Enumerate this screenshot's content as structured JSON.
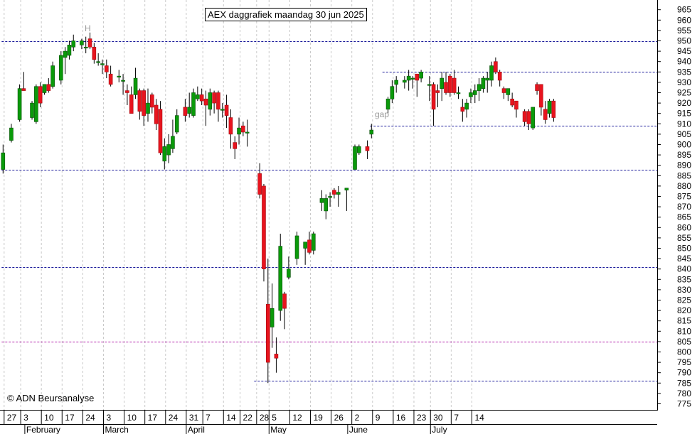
{
  "title": "AEX daggrafiek maandag 30 jun 2025",
  "copyright": "© ADN Beursanalyse",
  "colors": {
    "up": "#0a9a0a",
    "down": "#e8141e",
    "hline": "#1a1a9a",
    "support_magenta": "#b01aa8",
    "grid": "#c8c8c8"
  },
  "chart_data": {
    "type": "candlestick",
    "title": "AEX daggrafiek maandag 30 jun 2025",
    "ylim": [
      770,
      968
    ],
    "y_ticks": [
      775,
      780,
      785,
      790,
      795,
      800,
      805,
      810,
      815,
      820,
      825,
      830,
      835,
      840,
      845,
      850,
      855,
      860,
      865,
      870,
      875,
      880,
      885,
      890,
      895,
      900,
      905,
      910,
      915,
      920,
      925,
      930,
      935,
      940,
      945,
      950,
      955,
      960,
      965
    ],
    "x_ticks": [
      "27",
      "3",
      "10",
      "17",
      "24",
      "3",
      "10",
      "17",
      "24",
      "31",
      "7",
      "14",
      "22",
      "28",
      "5",
      "12",
      "19",
      "26",
      "2",
      "9",
      "16",
      "23",
      "30",
      "7",
      "14"
    ],
    "months": [
      "February",
      "March",
      "April",
      "May",
      "June",
      "July"
    ],
    "grid": true,
    "annotations": [
      {
        "text": "H"
      },
      {
        "text": "gap"
      }
    ],
    "horizontal_lines": [
      {
        "y": 950,
        "color": "blue",
        "from": 0
      },
      {
        "y": 935,
        "color": "blue",
        "from": 92
      },
      {
        "y": 909,
        "color": "blue",
        "from": 89
      },
      {
        "y": 888,
        "color": "blue",
        "from": 0
      },
      {
        "y": 841,
        "color": "blue",
        "from": 0
      },
      {
        "y": 805,
        "color": "magenta",
        "from": 0
      },
      {
        "y": 786,
        "color": "blue",
        "from": 61
      }
    ],
    "candles": [
      {
        "d": 0,
        "o": 888,
        "h": 900,
        "l": 886,
        "c": 896
      },
      {
        "d": 2,
        "o": 902,
        "h": 910,
        "l": 901,
        "c": 908
      },
      {
        "d": 4,
        "o": 912,
        "h": 929,
        "l": 911,
        "c": 927
      },
      {
        "d": 5,
        "o": 927,
        "h": 935,
        "l": 926,
        "c": 926
      },
      {
        "d": 7,
        "o": 913,
        "h": 921,
        "l": 912,
        "c": 920
      },
      {
        "d": 8,
        "o": 911,
        "h": 929,
        "l": 910,
        "c": 928
      },
      {
        "d": 9,
        "o": 928,
        "h": 930,
        "l": 918,
        "c": 920
      },
      {
        "d": 10,
        "o": 925,
        "h": 929,
        "l": 924,
        "c": 929
      },
      {
        "d": 11,
        "o": 929,
        "h": 932,
        "l": 925,
        "c": 926
      },
      {
        "d": 12,
        "o": 928,
        "h": 940,
        "l": 927,
        "c": 938
      },
      {
        "d": 14,
        "o": 931,
        "h": 945,
        "l": 929,
        "c": 943
      },
      {
        "d": 15,
        "o": 942,
        "h": 947,
        "l": 934,
        "c": 945
      },
      {
        "d": 16,
        "o": 943,
        "h": 950,
        "l": 941,
        "c": 948
      },
      {
        "d": 17,
        "o": 947,
        "h": 953,
        "l": 945,
        "c": 950
      },
      {
        "d": 19,
        "o": 948,
        "h": 951,
        "l": 946,
        "c": 950
      },
      {
        "d": 20,
        "o": 947,
        "h": 952,
        "l": 944,
        "c": 947
      },
      {
        "d": 21,
        "o": 951,
        "h": 954,
        "l": 946,
        "c": 947
      },
      {
        "d": 22,
        "o": 947,
        "h": 949,
        "l": 939,
        "c": 941
      },
      {
        "d": 23,
        "o": 940,
        "h": 944,
        "l": 938,
        "c": 940
      },
      {
        "d": 24,
        "o": 939,
        "h": 941,
        "l": 934,
        "c": 939
      },
      {
        "d": 25,
        "o": 938,
        "h": 941,
        "l": 932,
        "c": 935
      },
      {
        "d": 26,
        "o": 934,
        "h": 938,
        "l": 928,
        "c": 929
      },
      {
        "d": 28,
        "o": 933,
        "h": 936,
        "l": 930,
        "c": 933
      },
      {
        "d": 29,
        "o": 931,
        "h": 934,
        "l": 924,
        "c": 931
      },
      {
        "d": 30,
        "o": 926,
        "h": 929,
        "l": 919,
        "c": 925
      },
      {
        "d": 31,
        "o": 924,
        "h": 928,
        "l": 915,
        "c": 915
      },
      {
        "d": 32,
        "o": 924,
        "h": 937,
        "l": 922,
        "c": 932
      },
      {
        "d": 33,
        "o": 926,
        "h": 927,
        "l": 912,
        "c": 916
      },
      {
        "d": 34,
        "o": 926,
        "h": 927,
        "l": 909,
        "c": 914
      },
      {
        "d": 35,
        "o": 915,
        "h": 927,
        "l": 911,
        "c": 920
      },
      {
        "d": 36,
        "o": 924,
        "h": 925,
        "l": 915,
        "c": 918
      },
      {
        "d": 37,
        "o": 919,
        "h": 922,
        "l": 907,
        "c": 910
      },
      {
        "d": 38,
        "o": 917,
        "h": 921,
        "l": 895,
        "c": 896
      },
      {
        "d": 39,
        "o": 892,
        "h": 903,
        "l": 888,
        "c": 899
      },
      {
        "d": 40,
        "o": 895,
        "h": 905,
        "l": 891,
        "c": 900
      },
      {
        "d": 41,
        "o": 898,
        "h": 912,
        "l": 896,
        "c": 904
      },
      {
        "d": 42,
        "o": 906,
        "h": 917,
        "l": 905,
        "c": 914
      },
      {
        "d": 44,
        "o": 918,
        "h": 922,
        "l": 911,
        "c": 914
      },
      {
        "d": 45,
        "o": 915,
        "h": 925,
        "l": 913,
        "c": 918
      },
      {
        "d": 46,
        "o": 914,
        "h": 927,
        "l": 913,
        "c": 925
      },
      {
        "d": 47,
        "o": 922,
        "h": 928,
        "l": 921,
        "c": 924
      },
      {
        "d": 48,
        "o": 924,
        "h": 927,
        "l": 919,
        "c": 921
      },
      {
        "d": 49,
        "o": 922,
        "h": 926,
        "l": 909,
        "c": 919
      },
      {
        "d": 50,
        "o": 917,
        "h": 927,
        "l": 914,
        "c": 925
      },
      {
        "d": 51,
        "o": 925,
        "h": 926,
        "l": 915,
        "c": 920
      },
      {
        "d": 52,
        "o": 925,
        "h": 926,
        "l": 911,
        "c": 917
      },
      {
        "d": 53,
        "o": 917,
        "h": 920,
        "l": 913,
        "c": 917
      },
      {
        "d": 54,
        "o": 919,
        "h": 924,
        "l": 908,
        "c": 914
      },
      {
        "d": 55,
        "o": 913,
        "h": 917,
        "l": 898,
        "c": 905
      },
      {
        "d": 56,
        "o": 901,
        "h": 904,
        "l": 893,
        "c": 898
      },
      {
        "d": 57,
        "o": 905,
        "h": 913,
        "l": 900,
        "c": 908
      },
      {
        "d": 58,
        "o": 909,
        "h": 911,
        "l": 904,
        "c": 906
      },
      {
        "d": 59,
        "o": 906,
        "h": 912,
        "l": 899,
        "c": 906
      },
      {
        "d": 62,
        "o": 886,
        "h": 891,
        "l": 874,
        "c": 876
      },
      {
        "d": 63,
        "o": 880,
        "h": 881,
        "l": 834,
        "c": 840
      },
      {
        "d": 64,
        "o": 823,
        "h": 845,
        "l": 785,
        "c": 795
      },
      {
        "d": 65,
        "o": 812,
        "h": 833,
        "l": 802,
        "c": 821
      },
      {
        "d": 66,
        "o": 799,
        "h": 807,
        "l": 790,
        "c": 797
      },
      {
        "d": 67,
        "o": 820,
        "h": 857,
        "l": 815,
        "c": 851
      },
      {
        "d": 68,
        "o": 828,
        "h": 829,
        "l": 811,
        "c": 821
      },
      {
        "d": 69,
        "o": 836,
        "h": 846,
        "l": 835,
        "c": 840
      },
      {
        "d": 71,
        "o": 845,
        "h": 858,
        "l": 842,
        "c": 856
      },
      {
        "d": 73,
        "o": 850,
        "h": 853,
        "l": 842,
        "c": 853
      },
      {
        "d": 74,
        "o": 854,
        "h": 858,
        "l": 847,
        "c": 848
      },
      {
        "d": 75,
        "o": 849,
        "h": 858,
        "l": 847,
        "c": 857
      },
      {
        "d": 77,
        "o": 872,
        "h": 878,
        "l": 868,
        "c": 874
      },
      {
        "d": 78,
        "o": 868,
        "h": 876,
        "l": 864,
        "c": 874
      },
      {
        "d": 79,
        "o": 875,
        "h": 877,
        "l": 870,
        "c": 875
      },
      {
        "d": 80,
        "o": 878,
        "h": 879,
        "l": 874,
        "c": 876
      },
      {
        "d": 81,
        "o": 876,
        "h": 880,
        "l": 870,
        "c": 877
      },
      {
        "d": 83,
        "o": 878,
        "h": 879,
        "l": 868,
        "c": 879
      },
      {
        "d": 85,
        "o": 888,
        "h": 900,
        "l": 888,
        "c": 899
      },
      {
        "d": 86,
        "o": 896,
        "h": 900,
        "l": 895,
        "c": 899
      },
      {
        "d": 88,
        "o": 899,
        "h": 902,
        "l": 893,
        "c": 897
      },
      {
        "d": 89,
        "o": 905,
        "h": 910,
        "l": 903,
        "c": 907
      },
      {
        "d": 93,
        "o": 917,
        "h": 923,
        "l": 915,
        "c": 922
      },
      {
        "d": 94,
        "o": 922,
        "h": 931,
        "l": 920,
        "c": 928
      },
      {
        "d": 95,
        "o": 929,
        "h": 933,
        "l": 925,
        "c": 931
      },
      {
        "d": 97,
        "o": 930,
        "h": 933,
        "l": 927,
        "c": 931
      },
      {
        "d": 98,
        "o": 931,
        "h": 936,
        "l": 926,
        "c": 933
      },
      {
        "d": 99,
        "o": 932,
        "h": 933,
        "l": 927,
        "c": 932
      },
      {
        "d": 100,
        "o": 934,
        "h": 934,
        "l": 923,
        "c": 931
      },
      {
        "d": 101,
        "o": 932,
        "h": 936,
        "l": 930,
        "c": 935
      },
      {
        "d": 103,
        "o": 929,
        "h": 933,
        "l": 921,
        "c": 929
      },
      {
        "d": 104,
        "o": 929,
        "h": 930,
        "l": 909,
        "c": 917
      },
      {
        "d": 105,
        "o": 926,
        "h": 929,
        "l": 918,
        "c": 925
      },
      {
        "d": 106,
        "o": 927,
        "h": 935,
        "l": 921,
        "c": 932
      },
      {
        "d": 107,
        "o": 930,
        "h": 935,
        "l": 924,
        "c": 925
      },
      {
        "d": 108,
        "o": 933,
        "h": 934,
        "l": 923,
        "c": 925
      },
      {
        "d": 109,
        "o": 932,
        "h": 936,
        "l": 924,
        "c": 925
      },
      {
        "d": 110,
        "o": 925,
        "h": 928,
        "l": 922,
        "c": 925
      },
      {
        "d": 111,
        "o": 918,
        "h": 922,
        "l": 911,
        "c": 916
      },
      {
        "d": 112,
        "o": 917,
        "h": 922,
        "l": 913,
        "c": 920
      },
      {
        "d": 113,
        "o": 923,
        "h": 927,
        "l": 920,
        "c": 925
      },
      {
        "d": 114,
        "o": 924,
        "h": 929,
        "l": 920,
        "c": 926
      },
      {
        "d": 115,
        "o": 926,
        "h": 932,
        "l": 921,
        "c": 929
      },
      {
        "d": 116,
        "o": 927,
        "h": 933,
        "l": 925,
        "c": 932
      },
      {
        "d": 117,
        "o": 931,
        "h": 935,
        "l": 925,
        "c": 932
      },
      {
        "d": 118,
        "o": 931,
        "h": 940,
        "l": 928,
        "c": 938
      },
      {
        "d": 119,
        "o": 940,
        "h": 942,
        "l": 934,
        "c": 935
      },
      {
        "d": 120,
        "o": 935,
        "h": 936,
        "l": 928,
        "c": 931
      },
      {
        "d": 121,
        "o": 927,
        "h": 928,
        "l": 922,
        "c": 925
      },
      {
        "d": 122,
        "o": 924,
        "h": 927,
        "l": 921,
        "c": 927
      },
      {
        "d": 123,
        "o": 922,
        "h": 925,
        "l": 918,
        "c": 919
      },
      {
        "d": 124,
        "o": 921,
        "h": 921,
        "l": 913,
        "c": 917
      },
      {
        "d": 126,
        "o": 916,
        "h": 917,
        "l": 909,
        "c": 911
      },
      {
        "d": 127,
        "o": 916,
        "h": 917,
        "l": 907,
        "c": 910
      },
      {
        "d": 128,
        "o": 908,
        "h": 917,
        "l": 907,
        "c": 918
      },
      {
        "d": 129,
        "o": 929,
        "h": 930,
        "l": 924,
        "c": 926
      },
      {
        "d": 130,
        "o": 929,
        "h": 929,
        "l": 914,
        "c": 918
      },
      {
        "d": 131,
        "o": 917,
        "h": 921,
        "l": 910,
        "c": 912
      },
      {
        "d": 132,
        "o": 915,
        "h": 922,
        "l": 913,
        "c": 921
      },
      {
        "d": 133,
        "o": 921,
        "h": 922,
        "l": 911,
        "c": 913
      }
    ]
  }
}
